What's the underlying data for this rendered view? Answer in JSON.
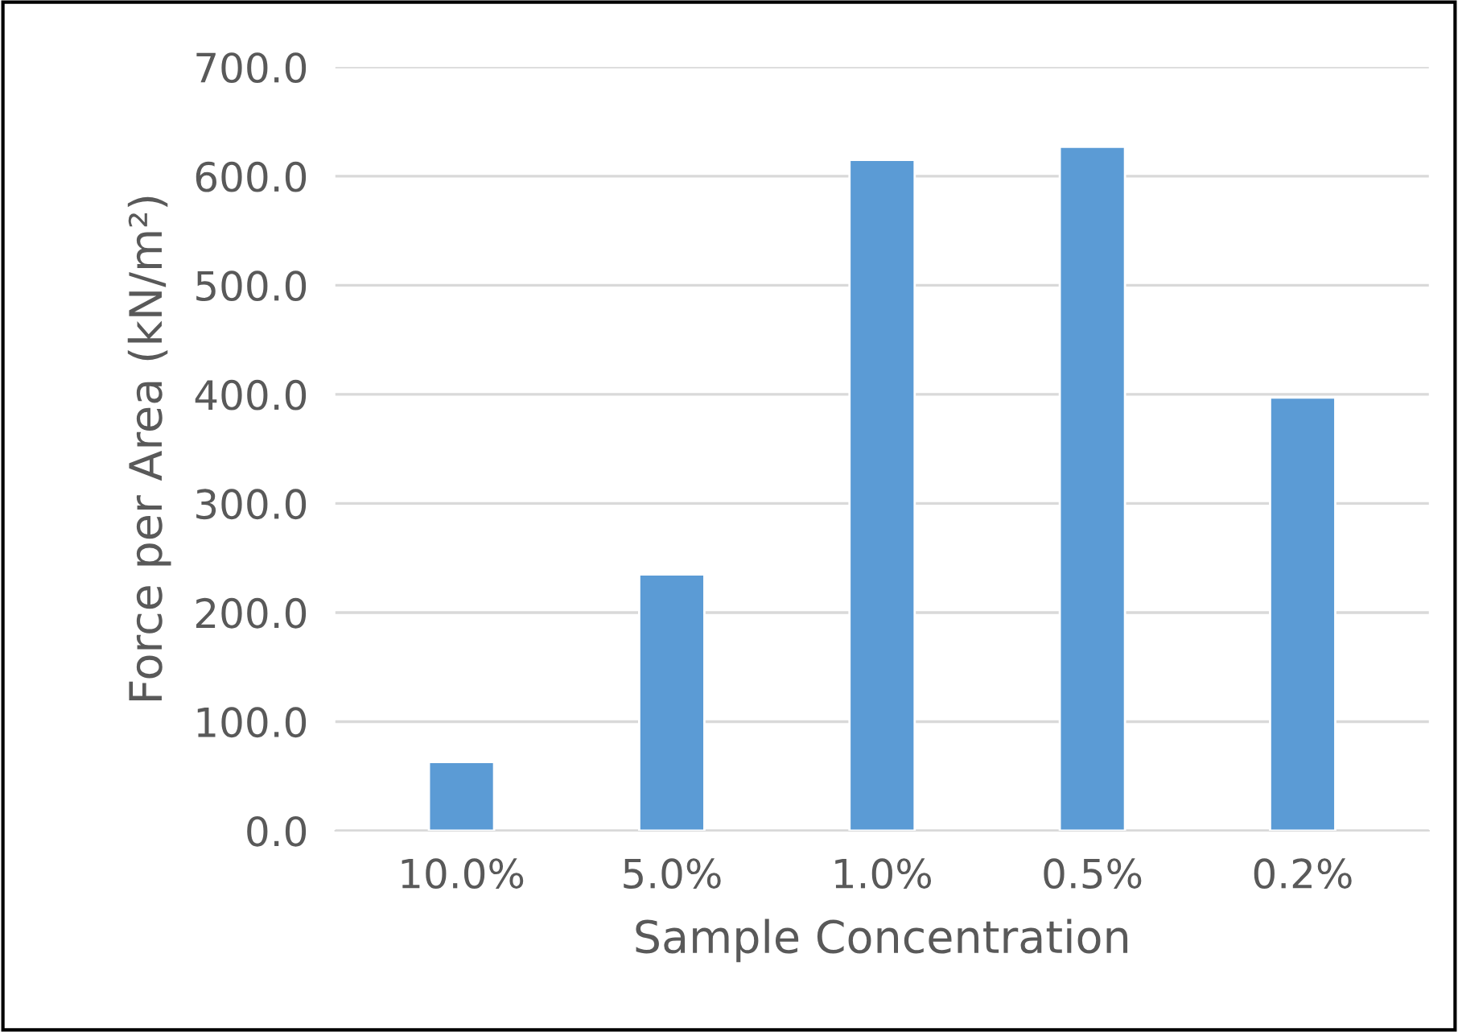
{
  "chart_data": {
    "type": "bar",
    "xlabel": "Sample Concentration",
    "ylabel": "Force per Area (kN/m²)",
    "categories": [
      "10.0%",
      "5.0%",
      "1.0%",
      "0.5%",
      "0.2%"
    ],
    "values": [
      63,
      235,
      615,
      627,
      397
    ],
    "color": "#5b9bd5",
    "ylim": [
      0,
      700
    ],
    "yticks": [
      {
        "value": 0,
        "label": "0.0"
      },
      {
        "value": 100,
        "label": "100.0"
      },
      {
        "value": 200,
        "label": "200.0"
      },
      {
        "value": 300,
        "label": "300.0"
      },
      {
        "value": 400,
        "label": "400.0"
      },
      {
        "value": 500,
        "label": "500.0"
      },
      {
        "value": 600,
        "label": "600.0"
      },
      {
        "value": 700,
        "label": "700.0"
      }
    ],
    "grid": "y"
  }
}
